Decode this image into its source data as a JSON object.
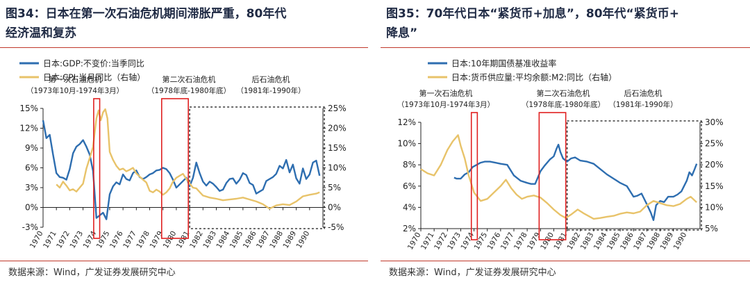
{
  "colors": {
    "blue": "#2e6eb0",
    "gold": "#e8c36a",
    "red": "#e02020",
    "axis": "#222222",
    "title": "#1f2a44"
  },
  "left": {
    "title_line1": "图34：日本在第一次石油危机期间滞胀严重，80年代",
    "title_line2": "经济温和复苏",
    "source": "数据来源：Wind，广发证券发展研究中心"
  },
  "right": {
    "title_line1": "图35：70年代日本“紧货币+加息”，80年代“紧货币+",
    "title_line2": "降息”",
    "source": "数据来源：Wind，广发证券发展研究中心"
  },
  "chart_data": [
    {
      "type": "line",
      "x_range": [
        1970,
        1991
      ],
      "x_ticks": [
        "1970",
        "1971",
        "1972",
        "1973",
        "1974",
        "1975",
        "1976",
        "1977",
        "1978",
        "1979",
        "1980",
        "1981",
        "1982",
        "1983",
        "1984",
        "1985",
        "1986",
        "1987",
        "1988",
        "1989",
        "1990"
      ],
      "y_left": {
        "range": [
          -3,
          15
        ],
        "ticks": [
          "-3%",
          "0%",
          "3%",
          "6%",
          "9%",
          "12%",
          "15%"
        ]
      },
      "y_right": {
        "range": [
          -5,
          25
        ],
        "ticks": [
          "-5%",
          "0%",
          "5%",
          "10%",
          "15%",
          "20%",
          "25%"
        ],
        "label": "右轴"
      },
      "legend": [
        "日本:GDP:不变价:当季同比",
        "日本:CPI:当月同比（右轴）"
      ],
      "annotations": [
        {
          "line1": "第一次石油危机",
          "line2": "（1973年10月-1974年3月）"
        },
        {
          "line1": "第二次石油危机",
          "line2": "（1978年底-1980年底）"
        },
        {
          "line1": "后石油危机",
          "line2": "（1981年-1990年）"
        }
      ],
      "periods": [
        [
          1973.8,
          1974.25
        ],
        [
          1978.9,
          1980.9
        ]
      ],
      "post_period": [
        1981.0,
        1991.0
      ],
      "series": [
        {
          "name": "日本:GDP:不变价:当季同比",
          "axis": "left",
          "x": [
            1970.0,
            1970.25,
            1970.5,
            1970.75,
            1971.0,
            1971.25,
            1971.5,
            1971.75,
            1972.0,
            1972.25,
            1972.5,
            1972.75,
            1973.0,
            1973.25,
            1973.5,
            1973.75,
            1974.0,
            1974.25,
            1974.5,
            1974.75,
            1975.0,
            1975.25,
            1975.5,
            1975.75,
            1976.0,
            1976.25,
            1976.5,
            1976.75,
            1977.0,
            1977.25,
            1977.5,
            1977.75,
            1978.0,
            1978.25,
            1978.5,
            1978.75,
            1979.0,
            1979.25,
            1979.5,
            1979.75,
            1980.0,
            1980.25,
            1980.5,
            1980.75,
            1981.0,
            1981.25,
            1981.5,
            1981.75,
            1982.0,
            1982.25,
            1982.5,
            1982.75,
            1983.0,
            1983.25,
            1983.5,
            1983.75,
            1984.0,
            1984.25,
            1984.5,
            1984.75,
            1985.0,
            1985.25,
            1985.5,
            1985.75,
            1986.0,
            1986.25,
            1986.5,
            1986.75,
            1987.0,
            1987.25,
            1987.5,
            1987.75,
            1988.0,
            1988.25,
            1988.5,
            1988.75,
            1989.0,
            1989.25,
            1989.5,
            1989.75,
            1990.0,
            1990.25,
            1990.5,
            1990.75
          ],
          "values": [
            13.2,
            10.5,
            11.0,
            8.0,
            5.2,
            4.6,
            4.5,
            4.2,
            5.8,
            8.2,
            9.2,
            9.6,
            10.2,
            9.2,
            8.0,
            5.5,
            -1.6,
            -1.2,
            -0.8,
            -1.8,
            2.0,
            3.2,
            3.8,
            3.5,
            5.0,
            4.3,
            4.1,
            5.2,
            5.6,
            4.6,
            4.3,
            4.6,
            5.0,
            5.2,
            5.6,
            5.7,
            6.0,
            5.8,
            5.2,
            4.2,
            3.0,
            3.5,
            4.0,
            4.5,
            3.2,
            4.5,
            6.8,
            5.2,
            3.9,
            3.3,
            3.9,
            3.6,
            3.1,
            2.5,
            2.7,
            3.7,
            4.3,
            4.4,
            3.6,
            4.2,
            5.2,
            4.9,
            3.7,
            3.4,
            2.1,
            2.4,
            2.7,
            4.0,
            4.3,
            4.6,
            5.1,
            6.3,
            5.9,
            7.2,
            5.3,
            6.5,
            4.4,
            3.6,
            5.9,
            4.3,
            5.0,
            6.8,
            7.1,
            4.8
          ]
        },
        {
          "name": "日本:CPI:当月同比（右轴）",
          "axis": "right",
          "x": [
            1971.0,
            1971.25,
            1971.5,
            1971.75,
            1972.0,
            1972.25,
            1972.5,
            1972.75,
            1973.0,
            1973.25,
            1973.5,
            1973.75,
            1974.0,
            1974.17,
            1974.33,
            1974.5,
            1974.67,
            1974.83,
            1975.0,
            1975.25,
            1975.5,
            1975.75,
            1976.0,
            1976.25,
            1976.5,
            1976.75,
            1977.0,
            1977.25,
            1977.5,
            1977.75,
            1978.0,
            1978.25,
            1978.5,
            1978.75,
            1979.0,
            1979.25,
            1979.5,
            1979.75,
            1980.0,
            1980.25,
            1980.5,
            1980.75,
            1981.0,
            1981.25,
            1981.5,
            1981.75,
            1982.0,
            1982.5,
            1983.0,
            1983.5,
            1984.0,
            1984.5,
            1985.0,
            1985.5,
            1986.0,
            1986.5,
            1987.0,
            1987.5,
            1988.0,
            1988.5,
            1989.0,
            1989.5,
            1990.0,
            1990.5,
            1990.75
          ],
          "values": [
            5.8,
            5.0,
            6.5,
            5.5,
            4.3,
            4.6,
            4.0,
            5.0,
            6.0,
            9.8,
            12.5,
            15.3,
            22.5,
            24.5,
            22.0,
            24.0,
            24.8,
            22.5,
            14.0,
            12.0,
            10.5,
            9.5,
            9.8,
            9.1,
            9.5,
            10.0,
            8.6,
            7.8,
            7.0,
            6.3,
            4.2,
            3.8,
            4.5,
            4.0,
            3.2,
            3.8,
            4.8,
            6.5,
            7.5,
            8.0,
            8.5,
            7.2,
            6.0,
            5.0,
            4.8,
            3.9,
            3.0,
            2.5,
            2.2,
            1.8,
            2.0,
            2.2,
            2.5,
            2.0,
            1.5,
            0.8,
            -0.3,
            0.5,
            0.8,
            0.6,
            1.5,
            2.8,
            3.2,
            3.5,
            3.8
          ]
        }
      ]
    },
    {
      "type": "line",
      "x_range": [
        1970,
        1991
      ],
      "x_ticks": [
        "1970",
        "1971",
        "1972",
        "1973",
        "1974",
        "1975",
        "1976",
        "1977",
        "1978",
        "1979",
        "1980",
        "1981",
        "1982",
        "1983",
        "1984",
        "1985",
        "1986",
        "1987",
        "1988",
        "1989",
        "1990"
      ],
      "y_left": {
        "range": [
          2,
          12
        ],
        "ticks": [
          "2%",
          "4%",
          "6%",
          "8%",
          "10%",
          "12%"
        ]
      },
      "y_right": {
        "range": [
          5,
          30
        ],
        "ticks": [
          "5%",
          "10%",
          "15%",
          "20%",
          "25%",
          "30%"
        ],
        "label": "右轴"
      },
      "legend": [
        "日本:10年期国债基准收益率",
        "日本:货币供应量:平均余额:M2:同比（右轴）"
      ],
      "annotations": [
        {
          "line1": "第一次石油危机",
          "line2": "（1973年10月-1974年3月）"
        },
        {
          "line1": "第二次石油危机",
          "line2": "（1978年底-1980年底）"
        },
        {
          "line1": "后石油危机",
          "line2": "（1981年-1990年）"
        }
      ],
      "periods": [
        [
          1973.8,
          1974.25
        ],
        [
          1978.9,
          1980.9
        ]
      ],
      "post_period": [
        1981.0,
        1991.0
      ],
      "series": [
        {
          "name": "日本:10年期国债基准收益率",
          "axis": "left",
          "x": [
            1972.5,
            1972.7,
            1973.0,
            1973.3,
            1973.6,
            1973.9,
            1974.2,
            1974.5,
            1974.8,
            1975.2,
            1975.6,
            1976.0,
            1976.5,
            1977.0,
            1977.5,
            1978.0,
            1978.3,
            1978.6,
            1979.0,
            1979.3,
            1979.7,
            1980.0,
            1980.2,
            1980.35,
            1980.5,
            1980.7,
            1981.0,
            1981.3,
            1981.6,
            1982.0,
            1982.5,
            1983.0,
            1983.5,
            1984.0,
            1984.5,
            1985.0,
            1985.5,
            1986.0,
            1986.3,
            1986.6,
            1987.0,
            1987.3,
            1987.5,
            1987.7,
            1988.0,
            1988.3,
            1988.6,
            1989.0,
            1989.3,
            1989.6,
            1990.0,
            1990.2,
            1990.4,
            1990.6,
            1990.75
          ],
          "values": [
            6.8,
            6.7,
            6.7,
            7.1,
            7.3,
            7.8,
            8.0,
            8.2,
            8.3,
            8.3,
            8.2,
            8.1,
            8.0,
            7.0,
            6.5,
            6.3,
            6.2,
            6.2,
            7.4,
            7.9,
            8.5,
            8.8,
            9.5,
            9.9,
            9.2,
            8.6,
            8.3,
            8.6,
            8.7,
            8.4,
            8.3,
            8.1,
            7.6,
            7.1,
            6.7,
            6.3,
            6.0,
            5.0,
            5.1,
            5.3,
            4.3,
            3.5,
            2.8,
            4.2,
            4.6,
            4.5,
            5.0,
            5.0,
            5.2,
            5.5,
            6.5,
            7.3,
            7.0,
            7.6,
            8.1
          ]
        },
        {
          "name": "日本:货币供应量:平均余额:M2:同比（右轴）",
          "axis": "right",
          "x": [
            1970.0,
            1970.5,
            1971.0,
            1971.5,
            1972.0,
            1972.4,
            1972.8,
            1973.0,
            1973.3,
            1973.6,
            1974.0,
            1974.5,
            1975.0,
            1975.5,
            1976.0,
            1976.4,
            1976.8,
            1977.2,
            1977.6,
            1978.0,
            1978.5,
            1979.0,
            1979.5,
            1980.0,
            1980.5,
            1980.9,
            1981.3,
            1981.8,
            1982.3,
            1983.0,
            1983.5,
            1984.0,
            1984.5,
            1985.0,
            1985.5,
            1986.0,
            1986.5,
            1987.0,
            1987.5,
            1988.0,
            1988.5,
            1989.0,
            1989.5,
            1990.0,
            1990.3,
            1990.75
          ],
          "values": [
            19.0,
            18.0,
            17.5,
            20.0,
            23.5,
            25.5,
            27.0,
            24.5,
            21.5,
            17.5,
            13.5,
            11.5,
            12.0,
            13.5,
            15.0,
            16.5,
            14.5,
            13.0,
            12.0,
            12.5,
            12.8,
            12.3,
            11.0,
            9.5,
            8.2,
            7.5,
            8.3,
            9.5,
            8.5,
            7.3,
            7.5,
            7.8,
            8.0,
            8.5,
            8.8,
            8.6,
            9.0,
            10.5,
            11.5,
            11.0,
            10.5,
            10.3,
            10.8,
            12.0,
            12.5,
            11.2
          ]
        }
      ]
    }
  ]
}
